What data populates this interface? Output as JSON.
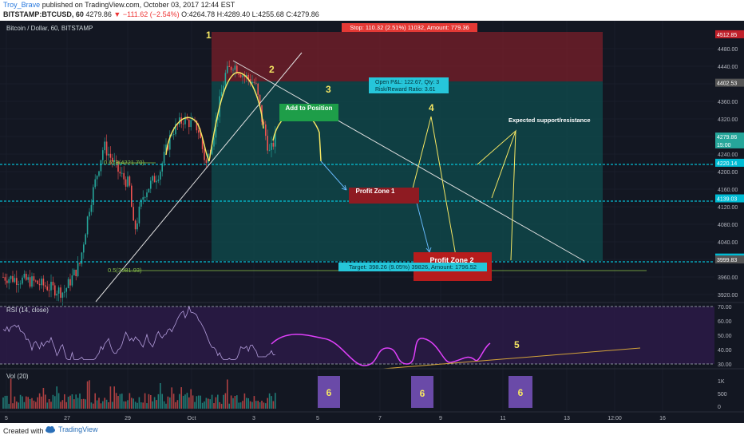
{
  "header": {
    "author": "Troy_Brave",
    "published": "published on TradingView.com, October 03, 2017 12:44 EST",
    "symbol": "BITSTAMP:BTCUSD, 60",
    "last": "4279.86",
    "change": "−111.62 (−2.54%)",
    "ohlc": "O:4264.78 H:4289.40 L:4255.68 C:4279.86"
  },
  "footer": {
    "created_with": "Created with",
    "brand": "TradingView"
  },
  "colors": {
    "bg": "#131722",
    "up": "#26a69a",
    "down": "#ef5350",
    "rsi": "#9b59b6",
    "drawn_rsi": "#e040fb",
    "cyan": "#00e5ff",
    "yellow": "#f5e663"
  },
  "chart_data": {
    "type": "candlestick",
    "title": "Bitcoin / Dollar, 60, BITSTAMP",
    "y_ticks": [
      3920,
      3960,
      4000,
      4040,
      4080,
      4120,
      4160,
      4200,
      4240,
      4280,
      4320,
      4360,
      4400,
      4440,
      4480
    ],
    "ylim": [
      3905,
      4530
    ],
    "x_ticks": [
      "5",
      "27",
      "29",
      "Oct",
      "3",
      "5",
      "7",
      "9",
      "11",
      "13",
      "12:00",
      "16"
    ],
    "price_labels": [
      {
        "text": "4512.85",
        "value": 4512.85,
        "color": "#c0202a"
      },
      {
        "text": "4402.53",
        "value": 4402.53,
        "color": "#555555"
      },
      {
        "text": "4279.86",
        "value": 4279.86,
        "color": "#26a69a"
      },
      {
        "text": "15:00",
        "value": 4262,
        "color": "#26a69a"
      },
      {
        "text": "4220.14",
        "value": 4220.14,
        "color": "#00bcd4"
      },
      {
        "text": "4139.03",
        "value": 4139.03,
        "color": "#00bcd4"
      },
      {
        "text": "4004.27",
        "value": 4004.27,
        "color": "#00bcd4"
      },
      {
        "text": "3999.83",
        "value": 3999.83,
        "color": "#555555"
      }
    ],
    "stop_label": "Stop: 110.32 (2.51%) 11032, Amount: 779.36",
    "target_label": "Target: 398.26 (9.05%) 39826, Amount: 1796.52",
    "open_pl": "Open P&L: 122.67, Qty: 3",
    "risk_reward": "Risk/Reward Ratio: 3.61",
    "fib_0618": "0.618(4221.70)",
    "fib_05": "0.5(3981.93)",
    "add_position": "Add to Position",
    "profit_zone_1": "Profit Zone 1",
    "profit_zone_2": "Profit Zone 2",
    "expected": "Expected support/resistance",
    "numbers": [
      "1",
      "2",
      "3",
      "4",
      "5",
      "6"
    ],
    "rsi": {
      "label": "RSI (14, close)",
      "ticks": [
        30,
        40,
        50,
        60,
        70
      ],
      "upper": 70,
      "lower": 30
    },
    "volume": {
      "label": "Vol (20)",
      "ticks": [
        "1K",
        "500",
        "0"
      ]
    }
  }
}
